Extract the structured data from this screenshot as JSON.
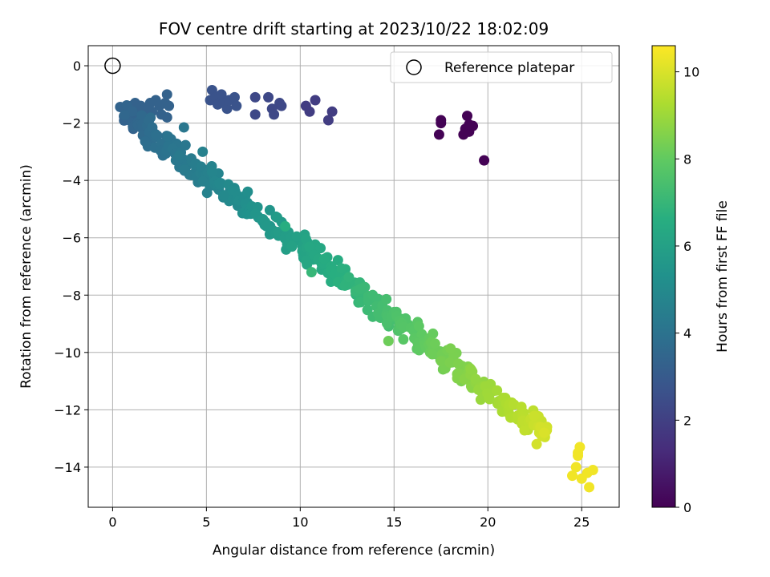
{
  "chart_data": {
    "type": "scatter",
    "title": "FOV centre drift starting at 2023/10/22 18:02:09",
    "xlabel": "Angular distance from reference (arcmin)",
    "ylabel": "Rotation from reference (arcmin)",
    "xlim": [
      -1.3,
      27.0
    ],
    "ylim": [
      -15.4,
      0.7
    ],
    "xticks": [
      0,
      5,
      10,
      15,
      20,
      25
    ],
    "yticks": [
      0,
      -2,
      -4,
      -6,
      -8,
      -10,
      -12,
      -14
    ],
    "grid": true,
    "legend": {
      "position": "top-right",
      "entries": [
        {
          "label": "Reference platepar",
          "marker": "open-circle"
        }
      ]
    },
    "reference_point": {
      "x": 0,
      "y": 0
    },
    "colorbar": {
      "label": "Hours from first FF file",
      "colormap": "viridis",
      "range": [
        0,
        10.6
      ],
      "ticks": [
        0,
        2,
        4,
        6,
        8,
        10
      ]
    },
    "trend": {
      "x_start": 0.5,
      "x_end": 23.2,
      "y_start": -1.6,
      "y_end": -12.9,
      "t_start": 3.3,
      "t_end": 9.9,
      "count": 420,
      "spread": 0.18
    },
    "points": [
      {
        "x": 17.5,
        "y": -2.0,
        "t": 0.05
      },
      {
        "x": 17.4,
        "y": -2.4,
        "t": 0.05
      },
      {
        "x": 17.5,
        "y": -1.9,
        "t": 0.05
      },
      {
        "x": 18.8,
        "y": -2.2,
        "t": 0.05
      },
      {
        "x": 18.9,
        "y": -1.75,
        "t": 0.05
      },
      {
        "x": 19.0,
        "y": -2.3,
        "t": 0.05
      },
      {
        "x": 19.2,
        "y": -2.1,
        "t": 0.05
      },
      {
        "x": 18.7,
        "y": -2.4,
        "t": 0.05
      },
      {
        "x": 19.0,
        "y": -2.05,
        "t": 0.05
      },
      {
        "x": 19.8,
        "y": -3.3,
        "t": 0.05
      },
      {
        "x": 10.3,
        "y": -1.4,
        "t": 1.9
      },
      {
        "x": 10.5,
        "y": -1.6,
        "t": 1.9
      },
      {
        "x": 10.8,
        "y": -1.2,
        "t": 1.9
      },
      {
        "x": 11.5,
        "y": -1.9,
        "t": 1.9
      },
      {
        "x": 11.7,
        "y": -1.6,
        "t": 1.9
      },
      {
        "x": 7.6,
        "y": -1.1,
        "t": 2.3
      },
      {
        "x": 7.6,
        "y": -1.7,
        "t": 2.3
      },
      {
        "x": 8.3,
        "y": -1.1,
        "t": 2.3
      },
      {
        "x": 8.5,
        "y": -1.5,
        "t": 2.3
      },
      {
        "x": 8.6,
        "y": -1.7,
        "t": 2.3
      },
      {
        "x": 8.9,
        "y": -1.3,
        "t": 2.3
      },
      {
        "x": 9.0,
        "y": -1.4,
        "t": 2.3
      },
      {
        "x": 5.3,
        "y": -0.85,
        "t": 2.7
      },
      {
        "x": 5.2,
        "y": -1.2,
        "t": 2.7
      },
      {
        "x": 5.5,
        "y": -1.1,
        "t": 2.7
      },
      {
        "x": 5.6,
        "y": -1.35,
        "t": 2.7
      },
      {
        "x": 5.8,
        "y": -1.0,
        "t": 2.7
      },
      {
        "x": 5.9,
        "y": -1.3,
        "t": 2.7
      },
      {
        "x": 6.1,
        "y": -1.5,
        "t": 2.7
      },
      {
        "x": 6.2,
        "y": -1.2,
        "t": 2.7
      },
      {
        "x": 6.5,
        "y": -1.1,
        "t": 2.7
      },
      {
        "x": 6.6,
        "y": -1.4,
        "t": 2.7
      },
      {
        "x": 0.8,
        "y": -1.5,
        "t": 3.3
      },
      {
        "x": 0.9,
        "y": -1.9,
        "t": 3.3
      },
      {
        "x": 1.0,
        "y": -1.4,
        "t": 3.3
      },
      {
        "x": 1.1,
        "y": -2.2,
        "t": 3.3
      },
      {
        "x": 1.2,
        "y": -1.3,
        "t": 3.3
      },
      {
        "x": 1.3,
        "y": -1.7,
        "t": 3.3
      },
      {
        "x": 1.5,
        "y": -1.4,
        "t": 3.3
      },
      {
        "x": 1.6,
        "y": -2.0,
        "t": 3.3
      },
      {
        "x": 1.7,
        "y": -1.5,
        "t": 3.3
      },
      {
        "x": 1.8,
        "y": -1.8,
        "t": 3.3
      },
      {
        "x": 2.0,
        "y": -1.3,
        "t": 3.3
      },
      {
        "x": 2.1,
        "y": -1.6,
        "t": 3.3
      },
      {
        "x": 2.3,
        "y": -1.2,
        "t": 3.3
      },
      {
        "x": 2.5,
        "y": -1.4,
        "t": 3.3
      },
      {
        "x": 2.6,
        "y": -1.7,
        "t": 3.3
      },
      {
        "x": 2.8,
        "y": -1.3,
        "t": 3.3
      },
      {
        "x": 2.9,
        "y": -1.0,
        "t": 3.3
      },
      {
        "x": 3.0,
        "y": -1.4,
        "t": 3.3
      },
      {
        "x": 2.9,
        "y": -1.8,
        "t": 3.3
      },
      {
        "x": 0.7,
        "y": -1.85,
        "t": 3.3
      },
      {
        "x": 3.8,
        "y": -2.15,
        "t": 4.2
      },
      {
        "x": 5.3,
        "y": -3.7,
        "t": 4.8
      },
      {
        "x": 4.8,
        "y": -3.0,
        "t": 4.6
      },
      {
        "x": 9.2,
        "y": -5.6,
        "t": 6.6
      },
      {
        "x": 10.6,
        "y": -7.2,
        "t": 7.0
      },
      {
        "x": 14.7,
        "y": -9.6,
        "t": 8.2
      },
      {
        "x": 22.6,
        "y": -13.2,
        "t": 9.9
      },
      {
        "x": 24.5,
        "y": -14.3,
        "t": 10.4
      },
      {
        "x": 24.7,
        "y": -14.0,
        "t": 10.4
      },
      {
        "x": 24.8,
        "y": -13.6,
        "t": 10.4
      },
      {
        "x": 24.9,
        "y": -13.3,
        "t": 10.4
      },
      {
        "x": 24.8,
        "y": -13.5,
        "t": 10.4
      },
      {
        "x": 25.0,
        "y": -14.4,
        "t": 10.4
      },
      {
        "x": 25.3,
        "y": -14.2,
        "t": 10.4
      },
      {
        "x": 25.4,
        "y": -14.7,
        "t": 10.4
      },
      {
        "x": 25.6,
        "y": -14.1,
        "t": 10.4
      },
      {
        "x": 23.0,
        "y": -12.8,
        "t": 10.0
      },
      {
        "x": 22.8,
        "y": -12.6,
        "t": 9.9
      }
    ]
  }
}
